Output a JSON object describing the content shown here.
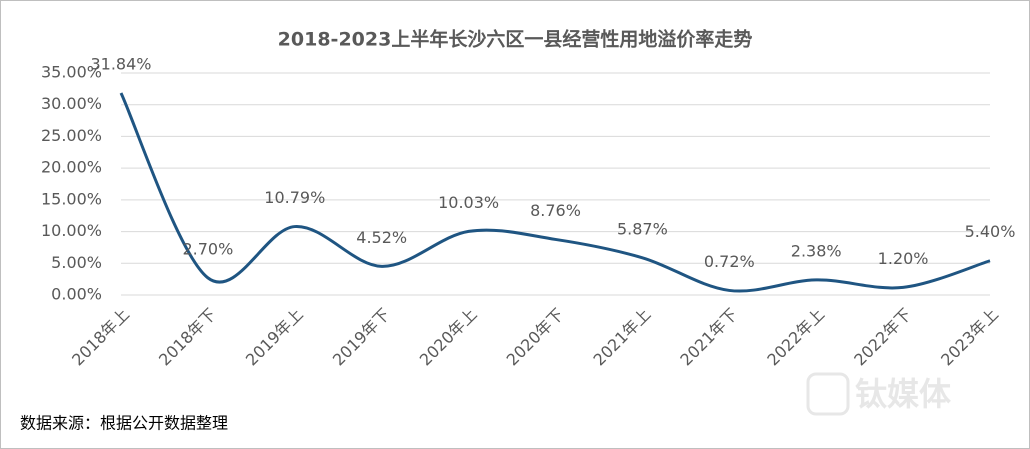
{
  "chart_data": {
    "type": "line",
    "title": "2018-2023上半年长沙六区一县经营性用地溢价率走势",
    "categories": [
      "2018年上",
      "2018年下",
      "2019年上",
      "2019年下",
      "2020年上",
      "2020年下",
      "2021年上",
      "2021年下",
      "2022年上",
      "2022年下",
      "2023年上"
    ],
    "values": [
      31.84,
      2.7,
      10.79,
      4.52,
      10.03,
      8.76,
      5.87,
      0.72,
      2.38,
      1.2,
      5.4
    ],
    "value_labels": [
      "31.84%",
      "2.70%",
      "10.79%",
      "4.52%",
      "10.03%",
      "8.76%",
      "5.87%",
      "0.72%",
      "2.38%",
      "1.20%",
      "5.40%"
    ],
    "color": "#1f5582",
    "smooth": true,
    "grid": true,
    "ylim": [
      0,
      35
    ],
    "yticks": [
      {
        "value": 0,
        "label": "0.00%"
      },
      {
        "value": 5,
        "label": "5.00%"
      },
      {
        "value": 10,
        "label": "10.00%"
      },
      {
        "value": 15,
        "label": "15.00%"
      },
      {
        "value": 20,
        "label": "20.00%"
      },
      {
        "value": 25,
        "label": "25.00%"
      },
      {
        "value": 30,
        "label": "30.00%"
      },
      {
        "value": 35,
        "label": "35.00%"
      }
    ],
    "source": "数据来源：根据公开数据整理",
    "watermark": "钛媒体"
  }
}
